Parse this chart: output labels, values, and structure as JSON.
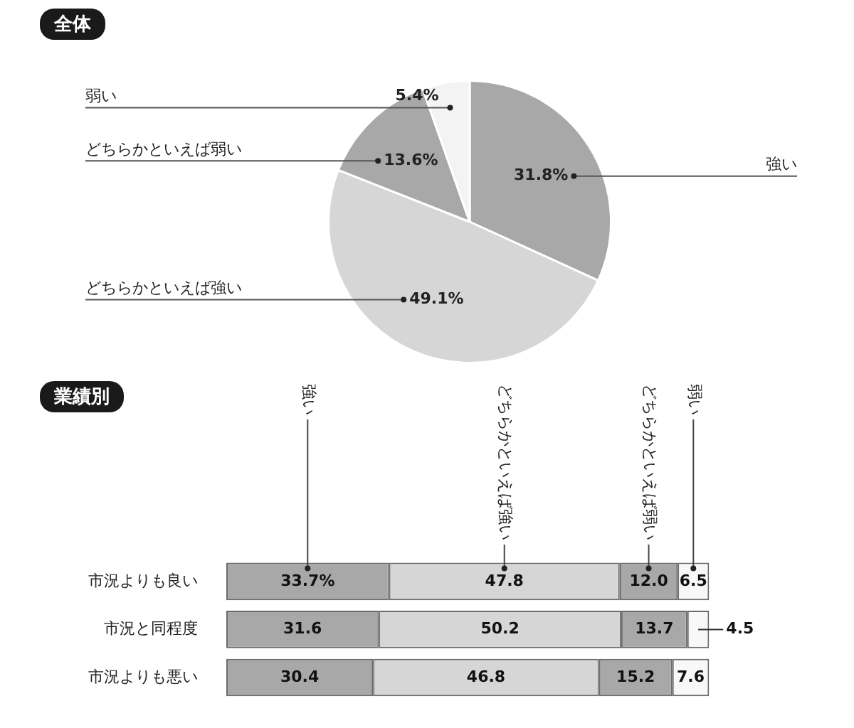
{
  "chart_data": [
    {
      "type": "pie",
      "title": "全体",
      "categories": [
        "強い",
        "どちらかといえば強い",
        "どちらかといえば弱い",
        "弱い"
      ],
      "values": [
        31.8,
        49.1,
        13.6,
        5.4
      ],
      "colors": [
        "#a8a8a8",
        "#d6d6d6",
        "#a8a8a8",
        "#f3f3f3"
      ],
      "value_labels": [
        "31.8%",
        "49.1%",
        "13.6%",
        "5.4%"
      ],
      "legend": false
    },
    {
      "type": "bar",
      "title": "業績別",
      "orientation": "horizontal",
      "stacked": true,
      "legend": false,
      "tick_labels": "y",
      "categories": [
        "市況よりも良い",
        "市況と同程度",
        "市況よりも悪い"
      ],
      "series": [
        {
          "name": "強い",
          "color": "#a8a8a8",
          "values": [
            33.7,
            31.6,
            30.4
          ],
          "value_labels": [
            "33.7%",
            "31.6",
            "30.4"
          ]
        },
        {
          "name": "どちらかといえば強い",
          "color": "#d6d6d6",
          "values": [
            47.8,
            50.2,
            46.8
          ],
          "value_labels": [
            "47.8",
            "50.2",
            "46.8"
          ]
        },
        {
          "name": "どちらかといえば弱い",
          "color": "#a8a8a8",
          "values": [
            12.0,
            13.7,
            15.2
          ],
          "value_labels": [
            "12.0",
            "13.7",
            "15.2"
          ]
        },
        {
          "name": "弱い",
          "color": "#f8f8f8",
          "values": [
            6.5,
            4.5,
            7.6
          ],
          "value_labels": [
            "6.5",
            "4.5",
            "7.6"
          ]
        }
      ]
    }
  ]
}
